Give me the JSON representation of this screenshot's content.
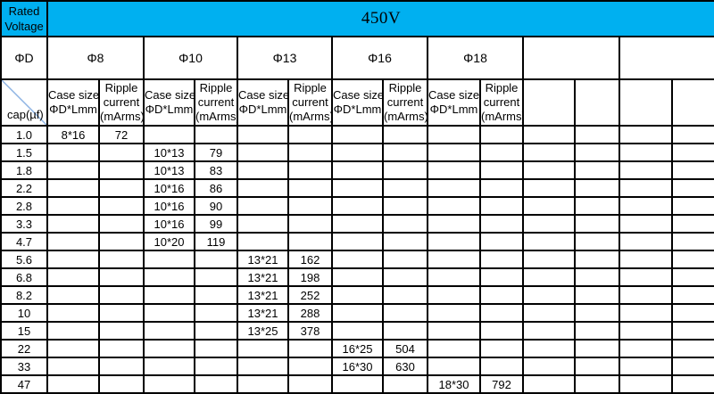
{
  "table": {
    "accent_color": "#00b0f0",
    "diagonal_color": "#8eb4e3",
    "rated_line1": "Rated",
    "rated_line2": "Voltage",
    "voltage": "450V",
    "phi_d_label": "ΦD",
    "cap_label": "cap(µf)",
    "groups": [
      "Φ8",
      "Φ10",
      "Φ13",
      "Φ16",
      "Φ18",
      "",
      ""
    ],
    "col_headers": [
      [
        "Case size",
        "ΦD*Lmm"
      ],
      [
        "Ripple",
        "current",
        "(mArms)"
      ],
      [
        "Case size",
        "ΦD*Lmm"
      ],
      [
        "Ripple",
        "current",
        "(mArms)"
      ],
      [
        "Case size",
        "ΦD*Lmm"
      ],
      [
        "Ripple",
        "current",
        "(mArms)"
      ],
      [
        "Case size",
        "ΦD*Lmm"
      ],
      [
        "Ripple",
        "current",
        "(mArms)"
      ],
      [
        "Case size",
        "ΦD*Lmm"
      ],
      [
        "Ripple",
        "current",
        "(mArms)"
      ],
      [],
      [],
      [],
      []
    ],
    "rows": [
      {
        "cap": "1.0",
        "values": [
          "8*16",
          "72",
          "",
          "",
          "",
          "",
          "",
          "",
          "",
          "",
          "",
          "",
          "",
          ""
        ]
      },
      {
        "cap": "1.5",
        "values": [
          "",
          "",
          "10*13",
          "79",
          "",
          "",
          "",
          "",
          "",
          "",
          "",
          "",
          "",
          ""
        ]
      },
      {
        "cap": "1.8",
        "values": [
          "",
          "",
          "10*13",
          "83",
          "",
          "",
          "",
          "",
          "",
          "",
          "",
          "",
          "",
          ""
        ]
      },
      {
        "cap": "2.2",
        "values": [
          "",
          "",
          "10*16",
          "86",
          "",
          "",
          "",
          "",
          "",
          "",
          "",
          "",
          "",
          ""
        ]
      },
      {
        "cap": "2.8",
        "values": [
          "",
          "",
          "10*16",
          "90",
          "",
          "",
          "",
          "",
          "",
          "",
          "",
          "",
          "",
          ""
        ]
      },
      {
        "cap": "3.3",
        "values": [
          "",
          "",
          "10*16",
          "99",
          "",
          "",
          "",
          "",
          "",
          "",
          "",
          "",
          "",
          ""
        ]
      },
      {
        "cap": "4.7",
        "values": [
          "",
          "",
          "10*20",
          "119",
          "",
          "",
          "",
          "",
          "",
          "",
          "",
          "",
          "",
          ""
        ]
      },
      {
        "cap": "5.6",
        "values": [
          "",
          "",
          "",
          "",
          "13*21",
          "162",
          "",
          "",
          "",
          "",
          "",
          "",
          "",
          ""
        ]
      },
      {
        "cap": "6.8",
        "values": [
          "",
          "",
          "",
          "",
          "13*21",
          "198",
          "",
          "",
          "",
          "",
          "",
          "",
          "",
          ""
        ]
      },
      {
        "cap": "8.2",
        "values": [
          "",
          "",
          "",
          "",
          "13*21",
          "252",
          "",
          "",
          "",
          "",
          "",
          "",
          "",
          ""
        ]
      },
      {
        "cap": "10",
        "values": [
          "",
          "",
          "",
          "",
          "13*21",
          "288",
          "",
          "",
          "",
          "",
          "",
          "",
          "",
          ""
        ]
      },
      {
        "cap": "15",
        "values": [
          "",
          "",
          "",
          "",
          "13*25",
          "378",
          "",
          "",
          "",
          "",
          "",
          "",
          "",
          ""
        ]
      },
      {
        "cap": "22",
        "values": [
          "",
          "",
          "",
          "",
          "",
          "",
          "16*25",
          "504",
          "",
          "",
          "",
          "",
          "",
          ""
        ]
      },
      {
        "cap": "33",
        "values": [
          "",
          "",
          "",
          "",
          "",
          "",
          "16*30",
          "630",
          "",
          "",
          "",
          "",
          "",
          ""
        ]
      },
      {
        "cap": "47",
        "values": [
          "",
          "",
          "",
          "",
          "",
          "",
          "",
          "",
          "18*30",
          "792",
          "",
          "",
          "",
          ""
        ]
      }
    ]
  }
}
